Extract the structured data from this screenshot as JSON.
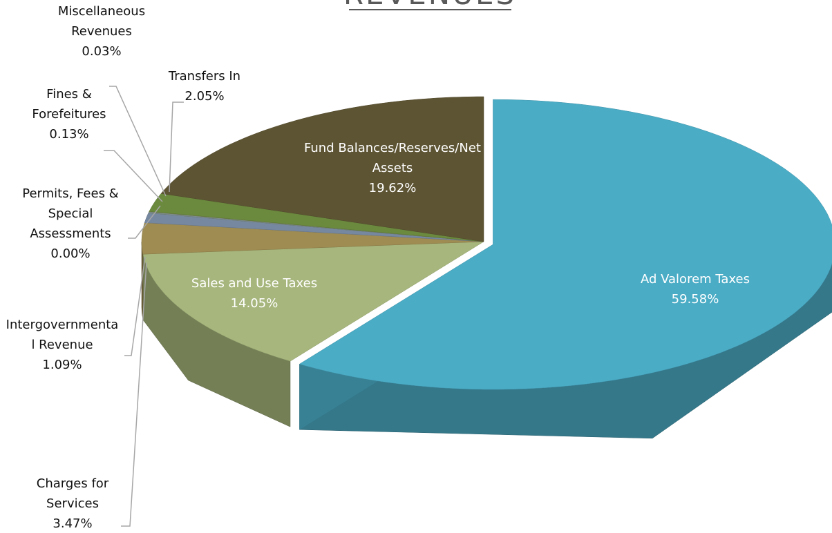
{
  "chart_data": {
    "type": "pie3d",
    "title": "REVENUES",
    "categories": [
      "Ad Valorem Taxes",
      "Sales and Use Taxes",
      "Charges for Services",
      "Intergovernmental Revenue",
      "Permits, Fees & Special Assessments",
      "Fines & Forefeitures",
      "Miscellaneous Revenues",
      "Transfers In",
      "Fund Balances/Reserves/Net Assets"
    ],
    "values": [
      59.58,
      14.05,
      3.47,
      1.09,
      0.0,
      0.13,
      0.03,
      2.05,
      19.62
    ],
    "value_labels": [
      "59.58%",
      "14.05%",
      "3.47%",
      "1.09%",
      "0.00%",
      "0.13%",
      "0.03%",
      "2.05%",
      "19.62%"
    ],
    "colors": [
      "#4bacc6",
      "#a6b67c",
      "#9e8c52",
      "#7688a0",
      "#8a9a6a",
      "#7f8f8f",
      "#8c8c6a",
      "#6b8a3e",
      "#5d5433"
    ]
  }
}
